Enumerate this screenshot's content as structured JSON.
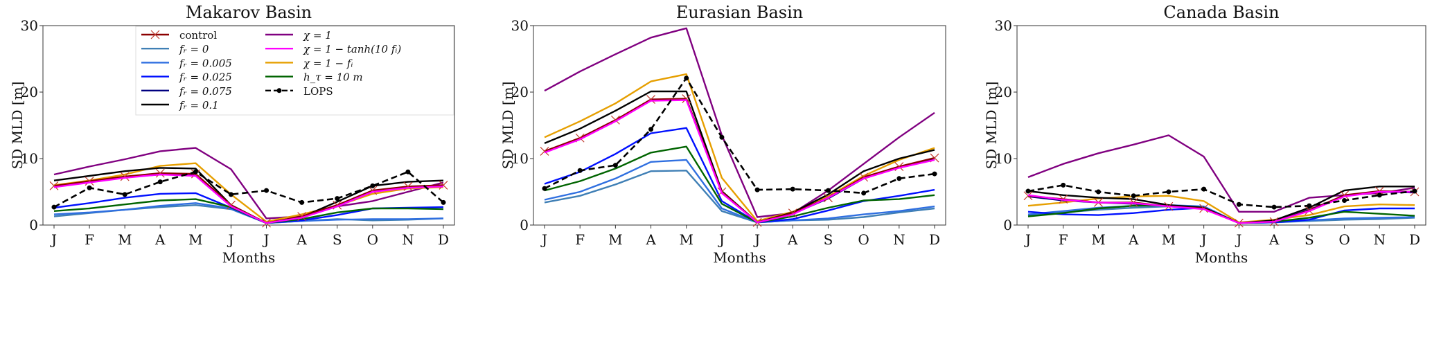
{
  "chart_data": {
    "type": "line",
    "ylabel": "SD MLD [m]",
    "xlabel": "Months",
    "ylim": [
      0,
      30
    ],
    "yticks": [
      0,
      10,
      20,
      30
    ],
    "categories": [
      "J",
      "F",
      "M",
      "A",
      "M",
      "J",
      "J",
      "A",
      "S",
      "O",
      "N",
      "D"
    ],
    "legend_placement": "upper-right of first panel",
    "series_styles": [
      {
        "key": "control",
        "name": "control",
        "color": "#8b0000",
        "marker": "x",
        "dash": false
      },
      {
        "key": "fr0",
        "name": "fᵣ = 0",
        "color": "#3f7fb5",
        "dash": false
      },
      {
        "key": "fr005",
        "name": "fᵣ = 0.005",
        "color": "#2f6fe0",
        "dash": false
      },
      {
        "key": "fr025",
        "name": "fᵣ = 0.025",
        "color": "#0010ff",
        "dash": false
      },
      {
        "key": "fr075",
        "name": "fᵣ = 0.075",
        "color": "#000080",
        "dash": false
      },
      {
        "key": "fr01",
        "name": "fᵣ = 0.1",
        "color": "#000000",
        "dash": false
      },
      {
        "key": "chi1",
        "name": "χ = 1",
        "color": "#800080",
        "dash": false
      },
      {
        "key": "tanh",
        "name": "χ = 1 − tanh(10 fᵢ)",
        "color": "#ff00ff",
        "dash": false
      },
      {
        "key": "chifi",
        "name": "χ = 1 − fᵢ",
        "color": "#e69f00",
        "dash": false
      },
      {
        "key": "h10",
        "name": "h_τ = 10 m",
        "color": "#006400",
        "dash": false
      },
      {
        "key": "lops",
        "name": "LOPS",
        "color": "#000000",
        "marker": "dot",
        "dash": true
      }
    ],
    "panels": [
      {
        "title": "Makarov Basin",
        "series": {
          "fr0": [
            1.3,
            1.8,
            2.3,
            2.7,
            3.0,
            2.4,
            0.3,
            0.6,
            0.9,
            0.7,
            0.8,
            1.0
          ],
          "fr005": [
            1.6,
            1.9,
            2.3,
            2.9,
            3.3,
            2.5,
            0.3,
            0.6,
            0.8,
            0.9,
            0.9,
            1.0
          ],
          "fr025": [
            2.6,
            3.3,
            4.1,
            4.7,
            4.8,
            2.6,
            0.3,
            0.7,
            1.5,
            2.5,
            2.6,
            2.7
          ],
          "fr075": [
            5.8,
            6.5,
            7.2,
            7.6,
            7.5,
            2.9,
            0.3,
            1.3,
            2.9,
            5.0,
            5.7,
            5.9
          ],
          "h10": [
            2.1,
            2.5,
            3.1,
            3.7,
            3.9,
            2.7,
            0.3,
            0.9,
            1.9,
            2.5,
            2.5,
            2.4
          ],
          "chi1": [
            7.6,
            8.8,
            9.9,
            11.1,
            11.6,
            8.4,
            1.0,
            1.3,
            2.8,
            3.6,
            5.0,
            6.4
          ],
          "chifi": [
            6.0,
            6.7,
            7.6,
            8.9,
            9.3,
            4.6,
            0.5,
            1.6,
            2.9,
            4.7,
            5.5,
            5.7
          ],
          "fr01": [
            6.7,
            7.4,
            8.1,
            8.6,
            8.5,
            3.0,
            0.3,
            1.2,
            3.5,
            5.9,
            6.5,
            6.7
          ],
          "control": [
            5.9,
            6.6,
            7.3,
            7.8,
            7.7,
            3.0,
            0.3,
            1.3,
            3.0,
            5.2,
            5.8,
            6.0
          ],
          "tanh": [
            5.7,
            6.4,
            7.1,
            7.6,
            7.4,
            2.8,
            0.3,
            1.1,
            2.8,
            5.0,
            5.6,
            5.8
          ],
          "lops": [
            2.7,
            5.6,
            4.6,
            6.5,
            8.0,
            4.6,
            5.2,
            3.4,
            4.0,
            5.9,
            8.0,
            3.4
          ]
        }
      },
      {
        "title": "Eurasian Basin",
        "series": {
          "fr0": [
            3.4,
            4.4,
            6.1,
            8.1,
            8.2,
            2.1,
            0.4,
            0.7,
            0.8,
            1.2,
            1.9,
            2.5
          ],
          "fr005": [
            3.8,
            5.0,
            7.0,
            9.5,
            9.8,
            2.5,
            0.4,
            0.7,
            1.0,
            1.6,
            2.1,
            2.8
          ],
          "fr025": [
            6.2,
            8.0,
            10.7,
            13.8,
            14.6,
            3.6,
            0.4,
            0.9,
            2.2,
            3.6,
            4.4,
            5.3
          ],
          "fr075": [
            11.0,
            13.0,
            15.7,
            18.8,
            18.9,
            4.9,
            0.4,
            1.7,
            4.0,
            7.0,
            8.7,
            9.9
          ],
          "h10": [
            5.2,
            6.6,
            8.5,
            10.9,
            11.8,
            3.2,
            0.4,
            1.3,
            2.6,
            3.7,
            3.9,
            4.5
          ],
          "chi1": [
            20.2,
            23.1,
            25.7,
            28.2,
            29.6,
            13.5,
            1.2,
            1.8,
            5.2,
            9.2,
            13.2,
            16.9
          ],
          "chifi": [
            13.2,
            15.6,
            18.3,
            21.6,
            22.7,
            7.1,
            0.6,
            2.0,
            4.3,
            7.4,
            9.8,
            11.6
          ],
          "fr01": [
            12.3,
            14.5,
            17.2,
            20.1,
            20.1,
            5.1,
            0.4,
            1.9,
            4.6,
            8.1,
            10.0,
            11.3
          ],
          "control": [
            11.1,
            13.1,
            15.8,
            18.9,
            19.0,
            5.0,
            0.4,
            1.8,
            4.1,
            7.2,
            8.8,
            10.1
          ],
          "tanh": [
            10.9,
            12.9,
            15.6,
            18.7,
            18.8,
            4.8,
            0.4,
            1.6,
            4.1,
            7.0,
            8.6,
            9.8
          ],
          "lops": [
            5.5,
            8.2,
            9.0,
            14.4,
            22.1,
            13.2,
            5.3,
            5.4,
            5.2,
            4.8,
            7.0,
            7.7
          ]
        }
      },
      {
        "title": "Canada Basin",
        "series": {
          "fr0": [
            1.4,
            1.9,
            2.3,
            2.6,
            2.8,
            2.7,
            0.3,
            0.4,
            0.6,
            0.8,
            0.9,
            1.1
          ],
          "fr005": [
            1.6,
            2.1,
            2.6,
            2.9,
            3.0,
            2.8,
            0.3,
            0.4,
            0.7,
            1.0,
            1.1,
            1.2
          ],
          "fr025": [
            2.0,
            1.6,
            1.5,
            1.8,
            2.3,
            2.6,
            0.3,
            0.4,
            0.8,
            2.2,
            2.5,
            2.5
          ],
          "fr075": [
            4.3,
            3.7,
            3.4,
            3.2,
            2.9,
            2.6,
            0.3,
            0.5,
            2.3,
            4.4,
            5.0,
            4.9
          ],
          "h10": [
            1.3,
            1.8,
            2.5,
            2.9,
            3.0,
            2.5,
            0.3,
            0.5,
            1.1,
            2.0,
            1.7,
            1.4
          ],
          "chi1": [
            7.2,
            9.2,
            10.8,
            12.1,
            13.5,
            10.3,
            2.0,
            2.0,
            4.1,
            4.5,
            4.8,
            5.6
          ],
          "chifi": [
            2.9,
            3.4,
            4.0,
            4.3,
            4.4,
            3.6,
            0.4,
            0.8,
            1.5,
            2.8,
            3.1,
            3.0
          ],
          "fr01": [
            5.1,
            4.5,
            4.1,
            3.9,
            3.0,
            2.6,
            0.3,
            0.7,
            2.6,
            5.2,
            5.8,
            5.8
          ],
          "control": [
            4.4,
            3.9,
            3.4,
            3.4,
            2.8,
            2.5,
            0.3,
            0.5,
            2.2,
            4.5,
            5.1,
            5.0
          ],
          "tanh": [
            4.5,
            3.8,
            3.4,
            3.3,
            2.8,
            2.4,
            0.3,
            0.5,
            2.1,
            4.3,
            5.0,
            5.0
          ],
          "lops": [
            5.1,
            6.0,
            5.0,
            4.4,
            5.0,
            5.4,
            3.1,
            2.7,
            2.9,
            3.7,
            4.5,
            5.1
          ]
        }
      }
    ]
  }
}
